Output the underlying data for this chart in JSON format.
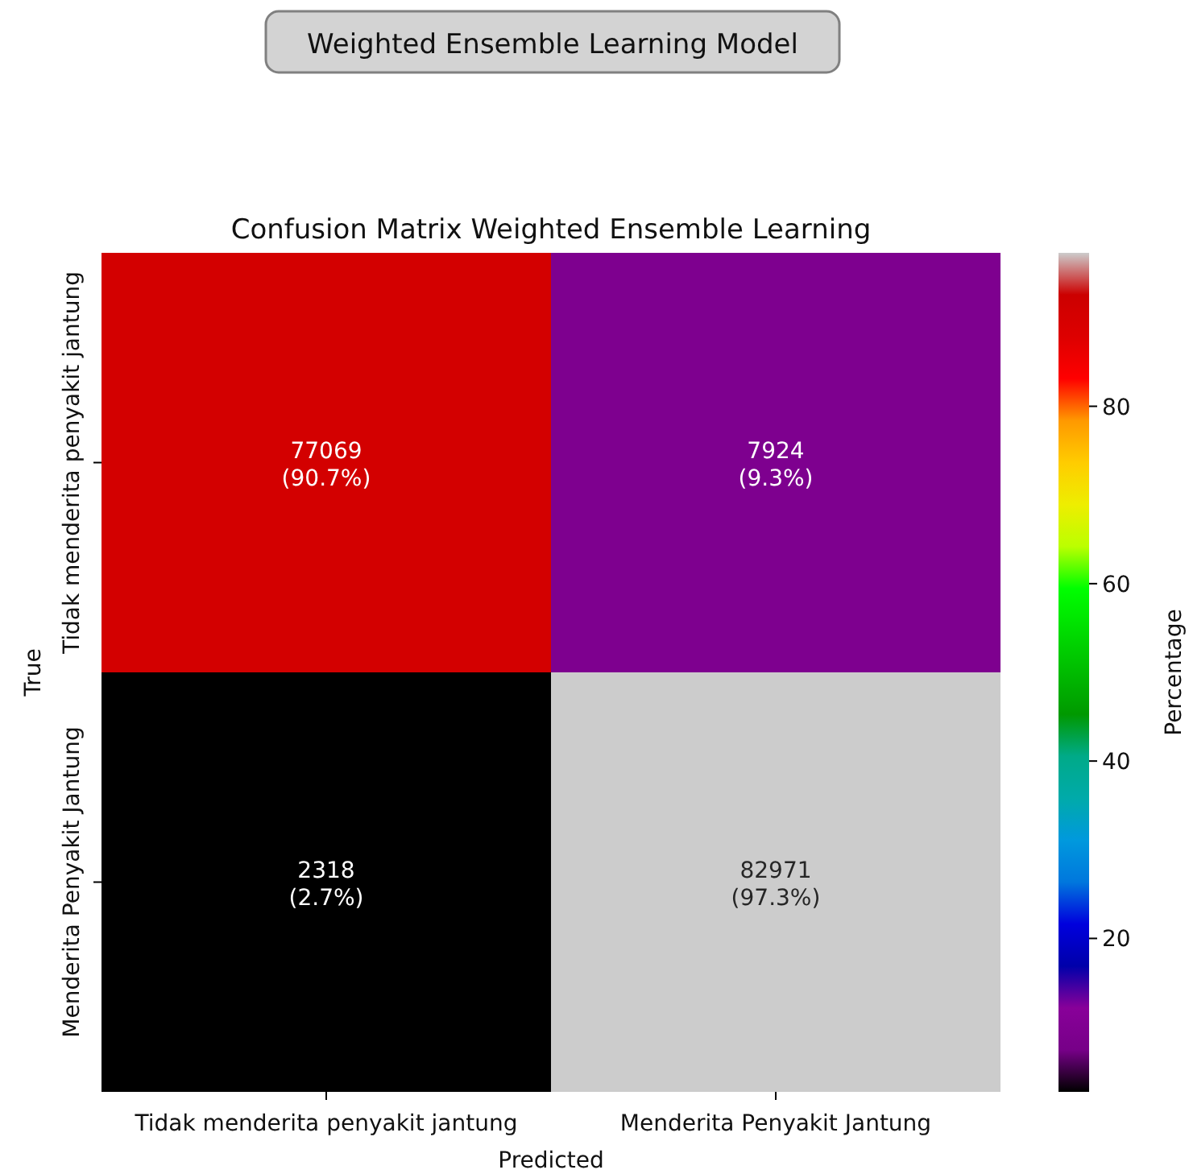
{
  "chart_data": {
    "type": "heatmap",
    "title": "Weighted Ensemble Learning Model",
    "subtitle": "Confusion Matrix  Weighted Ensemble Learning",
    "xlabel": "Predicted",
    "ylabel": "True",
    "clabel": "Percentage",
    "categories": [
      "Tidak menderita penyakit jantung",
      "Menderita Penyakit Jantung"
    ],
    "y_categories": [
      "Tidak menderita penyakit jantung",
      "Menderita Penyakit Jantung"
    ],
    "cells": [
      [
        90.7,
        9.3
      ],
      [
        2.7,
        97.3
      ]
    ],
    "cell_labels": [
      [
        "77069\n(90.7%)",
        "7924\n(9.3%)"
      ],
      [
        "2318\n(2.7%)",
        "82971\n(97.3%)"
      ]
    ],
    "clim": [
      2.7,
      97.3
    ],
    "cticks": [
      20,
      40,
      60,
      80
    ]
  }
}
